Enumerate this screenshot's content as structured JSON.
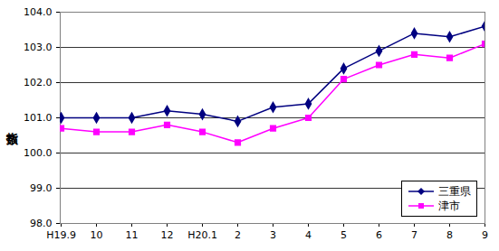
{
  "chart_data": {
    "type": "line",
    "ylabel": "指数",
    "categories": [
      "H19.9",
      "10",
      "11",
      "12",
      "H20.1",
      "2",
      "3",
      "4",
      "5",
      "6",
      "7",
      "8",
      "9"
    ],
    "series": [
      {
        "name": "三重県",
        "color": "#000080",
        "marker": "diamond",
        "values": [
          101.0,
          101.0,
          101.0,
          101.2,
          101.1,
          100.9,
          101.3,
          101.4,
          102.4,
          102.9,
          103.4,
          103.3,
          103.6
        ]
      },
      {
        "name": "津市",
        "color": "#ff00ff",
        "marker": "square",
        "values": [
          100.7,
          100.6,
          100.6,
          100.8,
          100.6,
          100.3,
          100.7,
          101.0,
          102.1,
          102.5,
          102.8,
          102.7,
          103.1
        ]
      }
    ],
    "ylim": [
      98,
      104
    ],
    "yticks": [
      {
        "value": 98,
        "label": "98.0"
      },
      {
        "value": 99,
        "label": "99.0"
      },
      {
        "value": 100,
        "label": "100.0"
      },
      {
        "value": 101,
        "label": "101.0"
      },
      {
        "value": 102,
        "label": "102.0"
      },
      {
        "value": 103,
        "label": "103.0"
      },
      {
        "value": 104,
        "label": "104.0"
      }
    ],
    "grid": true,
    "legend": "lower right"
  }
}
